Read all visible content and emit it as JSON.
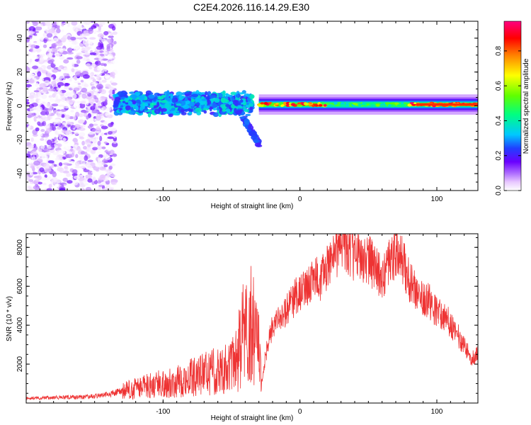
{
  "chart_data": [
    {
      "type": "heatmap",
      "title": "C2E4.2026.116.14.29.E30",
      "xlabel": "Height of straight line (km)",
      "ylabel": "Frequency (Hz)",
      "xlim": [
        -200,
        130
      ],
      "ylim": [
        -50,
        50
      ],
      "x_ticks": [
        -100,
        0,
        100
      ],
      "x_tick_labels": [
        "-100",
        "0",
        "100"
      ],
      "y_ticks": [
        -40,
        -20,
        0,
        20,
        40
      ],
      "y_tick_labels": [
        "-40",
        "-20",
        "0",
        "20",
        "40"
      ],
      "colorbar": {
        "label": "Normalized spectral amplitude",
        "range": [
          0,
          0.97
        ],
        "ticks": [
          0.0,
          0.2,
          0.4,
          0.6,
          0.8
        ],
        "tick_labels": [
          "0.0",
          "0.2",
          "0.4",
          "0.6",
          "0.8"
        ],
        "colormap": [
          "#ffffff",
          "#e8c8ff",
          "#b070ff",
          "#6a00ff",
          "#2040ff",
          "#00c8ff",
          "#00ff80",
          "#60ff00",
          "#ffff00",
          "#ff8000",
          "#ff0000",
          "#ff0080"
        ]
      },
      "regions": [
        {
          "x_range": [
            -200,
            -135
          ],
          "y_range": [
            -50,
            50
          ],
          "amplitude": [
            0.05,
            0.2
          ],
          "description": "scattered noise"
        },
        {
          "x_range": [
            -135,
            -35
          ],
          "y_range": [
            -5,
            8
          ],
          "amplitude": [
            0.3,
            0.5
          ],
          "description": "broad band"
        },
        {
          "x_range": [
            -45,
            -30
          ],
          "y_range": [
            -22,
            0
          ],
          "amplitude": [
            0.3,
            0.4
          ],
          "description": "downward tail"
        },
        {
          "x_range": [
            -30,
            130
          ],
          "y_range": [
            -2,
            3
          ],
          "amplitude": [
            0.5,
            0.95
          ],
          "description": "narrow band"
        }
      ]
    },
    {
      "type": "line",
      "title": "",
      "xlabel": "Height of straight line (km)",
      "ylabel": "SNR (10 * v/v)",
      "xlim": [
        -200,
        130
      ],
      "ylim": [
        0,
        8700
      ],
      "x_ticks": [
        -100,
        0,
        100
      ],
      "x_tick_labels": [
        "-100",
        "0",
        "100"
      ],
      "y_ticks": [
        2000,
        4000,
        6000,
        8000
      ],
      "y_tick_labels": [
        "2000",
        "4000",
        "6000",
        "8000"
      ],
      "series": [
        {
          "name": "SNR",
          "color": "#ee3333",
          "x": [
            -200,
            -180,
            -160,
            -150,
            -140,
            -130,
            -120,
            -110,
            -100,
            -90,
            -80,
            -70,
            -60,
            -50,
            -45,
            -40,
            -38,
            -35,
            -30,
            -28,
            -25,
            -22,
            -20,
            -15,
            -10,
            -5,
            0,
            5,
            10,
            15,
            20,
            25,
            28,
            30,
            35,
            40,
            45,
            50,
            55,
            60,
            65,
            70,
            72,
            75,
            80,
            85,
            90,
            95,
            100,
            105,
            110,
            115,
            120,
            125,
            130
          ],
          "values": [
            250,
            280,
            300,
            350,
            450,
            600,
            750,
            900,
            1000,
            1100,
            1300,
            1500,
            1700,
            1900,
            2300,
            3200,
            3500,
            3300,
            2700,
            1000,
            2500,
            3400,
            4000,
            4300,
            4700,
            5300,
            5700,
            5900,
            6500,
            6300,
            7000,
            7700,
            7900,
            8300,
            7900,
            7600,
            7500,
            7400,
            6900,
            6400,
            7100,
            7800,
            7900,
            7200,
            6300,
            5700,
            5500,
            5200,
            4700,
            4400,
            4100,
            3500,
            3000,
            2300,
            2500
          ]
        }
      ]
    }
  ]
}
